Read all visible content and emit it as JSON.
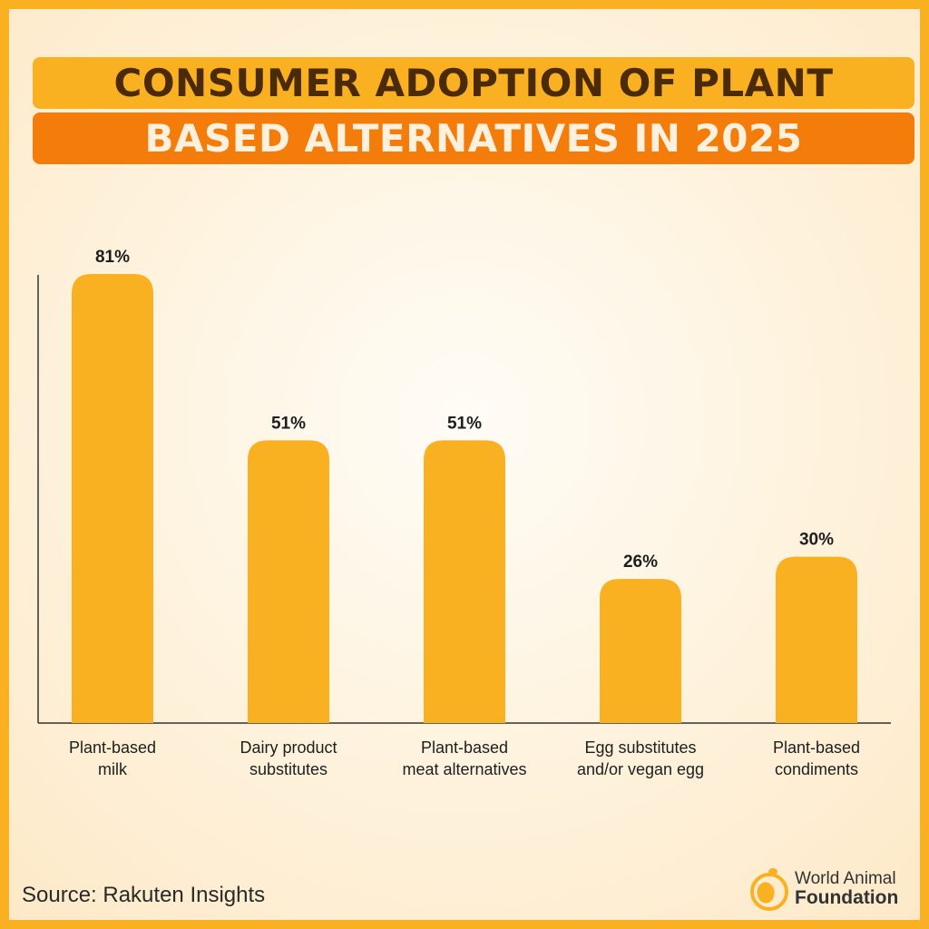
{
  "title_line1": "CONSUMER ADOPTION OF PLANT",
  "title_line2": "BASED ALTERNATIVES IN 2025",
  "source": "Source: Rakuten Insights",
  "logo": {
    "line1": "World Animal",
    "line2": "Foundation"
  },
  "colors": {
    "bar": "#F9B121",
    "accent": "#F37C0A",
    "text": "#1E1E1E"
  },
  "chart_data": {
    "type": "bar",
    "title": "Consumer Adoption of Plant Based Alternatives in 2025",
    "categories": [
      [
        "Plant-based",
        "milk"
      ],
      [
        "Dairy product",
        "substitutes"
      ],
      [
        "Plant-based",
        "meat alternatives"
      ],
      [
        "Egg substitutes",
        "and/or vegan egg"
      ],
      [
        "Plant-based",
        "condiments"
      ]
    ],
    "values": [
      81,
      51,
      51,
      26,
      30
    ],
    "value_labels": [
      "81%",
      "51%",
      "51%",
      "26%",
      "30%"
    ],
    "unit": "%",
    "ylim": [
      0,
      81
    ],
    "grid": false
  }
}
